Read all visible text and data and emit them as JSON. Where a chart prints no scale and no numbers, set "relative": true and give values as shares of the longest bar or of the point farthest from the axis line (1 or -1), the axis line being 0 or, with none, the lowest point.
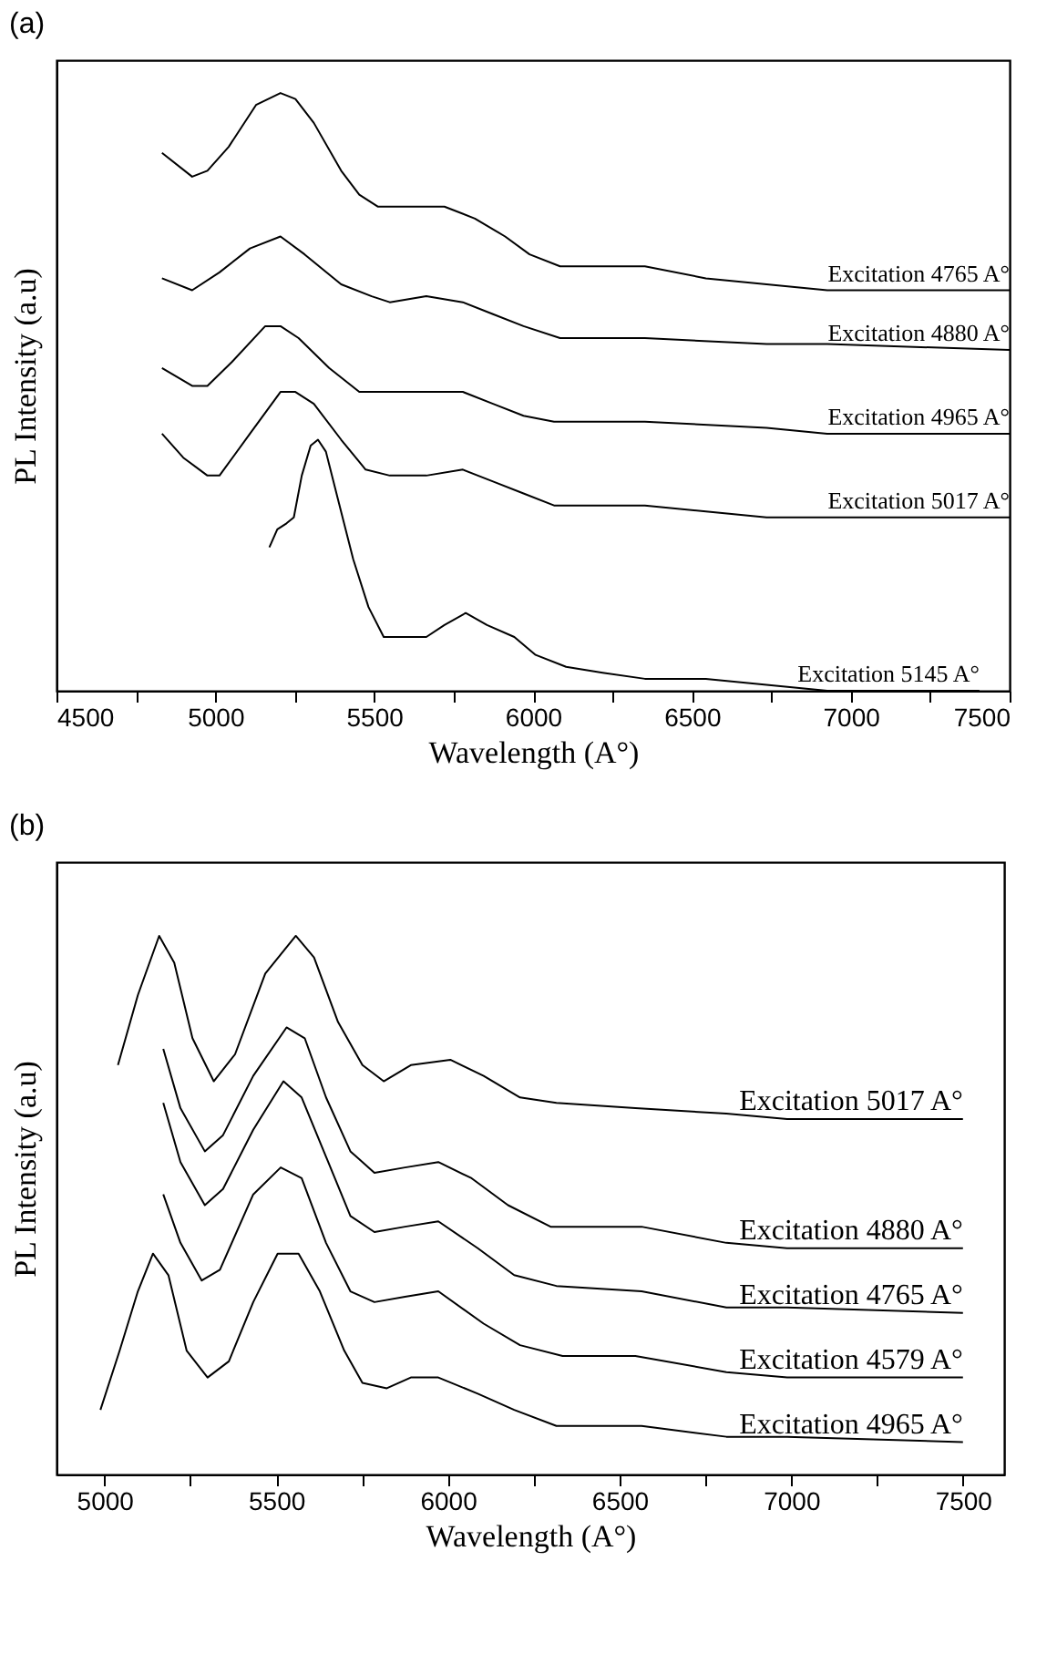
{
  "chart_data": [
    {
      "type": "line",
      "title": "(a)",
      "xlabel": "Wavelength (A°)",
      "ylabel": "PL Intensity (a.u)",
      "relative": true,
      "xlim": [
        4500,
        7500
      ],
      "xticks": [
        4500,
        {
          "value": 4750,
          "label": null
        },
        5000,
        {
          "value": 5250,
          "label": null
        },
        5500,
        {
          "value": 5750,
          "label": null
        },
        6000,
        {
          "value": 6250,
          "label": null
        },
        6500,
        {
          "value": 6750,
          "label": null
        },
        7000,
        {
          "value": 7250,
          "label": null
        },
        7500
      ],
      "series": [
        {
          "name": "Excitation 4765 A°",
          "color": "#000000",
          "x": [
            4832,
            4927,
            4975,
            5042,
            5128,
            5205,
            5252,
            5310,
            5396,
            5453,
            5511,
            5626,
            5721,
            5817,
            5912,
            5989,
            6085,
            6219,
            6352,
            6544,
            6735,
            6926,
            7500
          ],
          "values": [
            0.9,
            0.86,
            0.87,
            0.91,
            0.98,
            1.0,
            0.99,
            0.95,
            0.87,
            0.83,
            0.81,
            0.81,
            0.81,
            0.79,
            0.76,
            0.73,
            0.71,
            0.71,
            0.71,
            0.69,
            0.68,
            0.67,
            0.67
          ]
        },
        {
          "name": "Excitation 4880 A°",
          "color": "#000000",
          "x": [
            4832,
            4927,
            5013,
            5109,
            5205,
            5281,
            5396,
            5492,
            5549,
            5664,
            5779,
            5874,
            5970,
            6085,
            6352,
            6735,
            6926,
            7500
          ],
          "values": [
            0.69,
            0.67,
            0.7,
            0.74,
            0.76,
            0.73,
            0.68,
            0.66,
            0.65,
            0.66,
            0.65,
            0.63,
            0.61,
            0.59,
            0.59,
            0.58,
            0.58,
            0.57
          ]
        },
        {
          "name": "Excitation 4965 A°",
          "color": "#000000",
          "x": [
            4832,
            4927,
            4975,
            5052,
            5157,
            5205,
            5262,
            5358,
            5453,
            5530,
            5683,
            5779,
            5874,
            5970,
            6066,
            6352,
            6735,
            6926,
            7500
          ],
          "values": [
            0.54,
            0.51,
            0.51,
            0.55,
            0.61,
            0.61,
            0.59,
            0.54,
            0.5,
            0.5,
            0.5,
            0.5,
            0.48,
            0.46,
            0.45,
            0.45,
            0.44,
            0.43,
            0.43
          ]
        },
        {
          "name": "Excitation 5017 A°",
          "color": "#000000",
          "x": [
            4832,
            4899,
            4975,
            5013,
            5109,
            5205,
            5252,
            5310,
            5396,
            5473,
            5549,
            5664,
            5779,
            5874,
            5970,
            6066,
            6352,
            6544,
            6735,
            6926,
            7500
          ],
          "values": [
            0.43,
            0.39,
            0.36,
            0.36,
            0.43,
            0.5,
            0.5,
            0.48,
            0.42,
            0.37,
            0.36,
            0.36,
            0.37,
            0.35,
            0.33,
            0.31,
            0.31,
            0.3,
            0.29,
            0.29,
            0.29
          ]
        },
        {
          "name": "Excitation 5145 A°",
          "color": "#000000",
          "x": [
            5170,
            5195,
            5224,
            5247,
            5272,
            5300,
            5323,
            5348,
            5386,
            5434,
            5482,
            5530,
            5587,
            5664,
            5721,
            5788,
            5855,
            5941,
            6008,
            6104,
            6219,
            6352,
            6544,
            6735,
            6926,
            7405
          ],
          "values": [
            0.24,
            0.27,
            0.28,
            0.29,
            0.36,
            0.41,
            0.42,
            0.4,
            0.32,
            0.22,
            0.14,
            0.09,
            0.09,
            0.09,
            0.11,
            0.13,
            0.11,
            0.09,
            0.06,
            0.04,
            0.03,
            0.02,
            0.02,
            0.01,
            0.0,
            0.0
          ]
        }
      ]
    },
    {
      "type": "line",
      "title": "(b)",
      "xlabel": "Wavelength (A°)",
      "ylabel": "PL Intensity (a.u)",
      "relative": true,
      "xlim": [
        4860,
        7620
      ],
      "xticks": [
        5000,
        {
          "value": 5250,
          "label": null
        },
        5500,
        {
          "value": 5750,
          "label": null
        },
        6000,
        {
          "value": 6250,
          "label": null
        },
        6500,
        {
          "value": 6750,
          "label": null
        },
        7000,
        {
          "value": 7250,
          "label": null
        },
        7500
      ],
      "series": [
        {
          "name": "Excitation 5017 A°",
          "color": "#000000",
          "x": [
            5039,
            5097,
            5159,
            5203,
            5256,
            5318,
            5380,
            5468,
            5557,
            5610,
            5680,
            5751,
            5813,
            5892,
            6007,
            6104,
            6210,
            6316,
            6546,
            6811,
            6988,
            7500
          ],
          "values": [
            0.76,
            0.89,
            1.0,
            0.95,
            0.81,
            0.73,
            0.78,
            0.93,
            1.0,
            0.96,
            0.84,
            0.76,
            0.73,
            0.76,
            0.77,
            0.74,
            0.7,
            0.69,
            0.68,
            0.67,
            0.66,
            0.66
          ]
        },
        {
          "name": "Excitation 4880 A°",
          "color": "#000000",
          "x": [
            5171,
            5221,
            5292,
            5345,
            5433,
            5530,
            5583,
            5645,
            5716,
            5786,
            5875,
            5972,
            6069,
            6175,
            6299,
            6564,
            6811,
            6988,
            7500
          ],
          "values": [
            0.79,
            0.68,
            0.6,
            0.63,
            0.74,
            0.83,
            0.81,
            0.7,
            0.6,
            0.56,
            0.57,
            0.58,
            0.55,
            0.5,
            0.46,
            0.46,
            0.43,
            0.42,
            0.42
          ]
        },
        {
          "name": "Excitation 4765 A°",
          "color": "#000000",
          "x": [
            5171,
            5221,
            5292,
            5345,
            5433,
            5521,
            5574,
            5645,
            5716,
            5786,
            5875,
            5972,
            6087,
            6193,
            6316,
            6564,
            6811,
            6988,
            7500
          ],
          "values": [
            0.69,
            0.58,
            0.5,
            0.53,
            0.64,
            0.73,
            0.7,
            0.59,
            0.48,
            0.45,
            0.46,
            0.47,
            0.42,
            0.37,
            0.35,
            0.34,
            0.31,
            0.31,
            0.3
          ]
        },
        {
          "name": "Excitation 4579 A°",
          "color": "#000000",
          "x": [
            5171,
            5221,
            5283,
            5336,
            5433,
            5513,
            5574,
            5645,
            5716,
            5786,
            5875,
            5972,
            6104,
            6210,
            6334,
            6546,
            6811,
            6988,
            7500
          ],
          "values": [
            0.52,
            0.43,
            0.36,
            0.38,
            0.52,
            0.57,
            0.55,
            0.43,
            0.34,
            0.32,
            0.33,
            0.34,
            0.28,
            0.24,
            0.22,
            0.22,
            0.19,
            0.18,
            0.18
          ]
        },
        {
          "name": "Excitation 4965 A°",
          "color": "#000000",
          "x": [
            4988,
            5044,
            5097,
            5141,
            5186,
            5239,
            5300,
            5362,
            5433,
            5504,
            5565,
            5627,
            5698,
            5751,
            5822,
            5892,
            5972,
            6087,
            6193,
            6316,
            6564,
            6811,
            6988,
            7500
          ],
          "values": [
            0.12,
            0.23,
            0.34,
            0.41,
            0.37,
            0.23,
            0.18,
            0.21,
            0.32,
            0.41,
            0.41,
            0.34,
            0.23,
            0.17,
            0.16,
            0.18,
            0.18,
            0.15,
            0.12,
            0.09,
            0.09,
            0.07,
            0.07,
            0.06
          ]
        }
      ]
    }
  ]
}
